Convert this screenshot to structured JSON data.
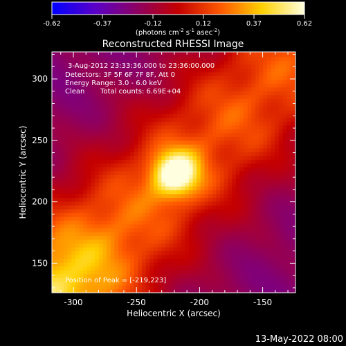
{
  "chart_data": {
    "type": "heatmap",
    "title": "Reconstructed RHESSI Image",
    "xlabel": "Heliocentric X (arcsec)",
    "ylabel": "Heliocentric Y (arcsec)",
    "xlim": [
      -317,
      -124
    ],
    "ylim": [
      126,
      322
    ],
    "x_ticks": [
      -300,
      -250,
      -200,
      -150
    ],
    "y_ticks": [
      150,
      200,
      250,
      300
    ],
    "colorbar": {
      "range": [
        -0.62,
        0.62
      ],
      "ticks": [
        "-0.62",
        "-0.37",
        "-0.12",
        "0.12",
        "0.37",
        "0.62"
      ],
      "unit_main": "(photons cm",
      "unit_sup1": "-2",
      "unit_mid": " s",
      "unit_sup2": "-1",
      "unit_tail": " asec",
      "unit_sup3": "-2",
      "unit_end": ")",
      "colors": [
        "#0000ff",
        "#5a00c8",
        "#8a0066",
        "#c40000",
        "#ff5a00",
        "#ffd000",
        "#ffffe0"
      ]
    },
    "annotations": {
      "time": "3-Aug-2012 23:33:36.000 to 23:36:00.000",
      "detectors": "Detectors: 3F 5F 6F 7F 8F, Att 0",
      "energy": "Energy Range: 3.0 - 6.0 keV",
      "clean": "Clean",
      "counts": "Total counts: 6.69E+04",
      "peak": "Position of Peak = [-219,223]"
    },
    "peak": {
      "x": -219,
      "y": 223,
      "value": 0.62
    }
  },
  "footer_date": "13-May-2022 08:00"
}
